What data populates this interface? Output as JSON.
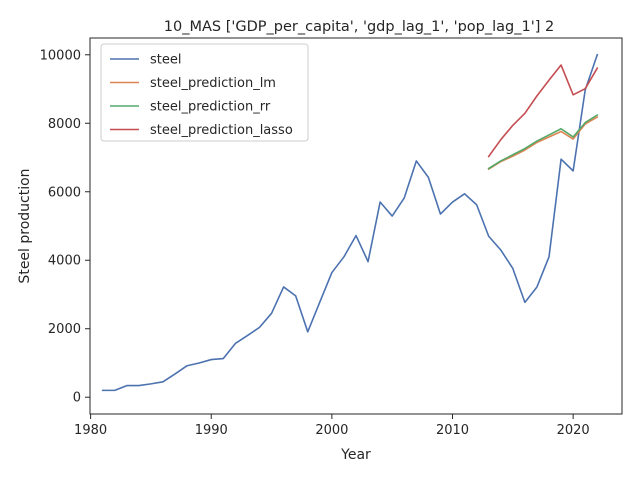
{
  "chart_data": {
    "type": "line",
    "title": "10_MAS ['GDP_per_capita', 'gdp_lag_1', 'pop_lag_1'] 2",
    "xlabel": "Year",
    "ylabel": "Steel production",
    "xlim": [
      1979.95,
      2024.05
    ],
    "ylim": [
      -490,
      10490
    ],
    "xticks": [
      1980,
      1990,
      2000,
      2010,
      2020
    ],
    "yticks": [
      0,
      2000,
      4000,
      6000,
      8000,
      10000
    ],
    "grid": false,
    "legend_position": "upper-left",
    "series": [
      {
        "name": "steel",
        "color": "#4c72b0",
        "x": [
          1981,
          1982,
          1983,
          1984,
          1985,
          1986,
          1987,
          1988,
          1989,
          1990,
          1991,
          1992,
          1993,
          1994,
          1995,
          1996,
          1997,
          1998,
          1999,
          2000,
          2001,
          2002,
          2003,
          2004,
          2005,
          2006,
          2007,
          2008,
          2009,
          2010,
          2011,
          2012,
          2013,
          2014,
          2015,
          2016,
          2017,
          2018,
          2019,
          2020,
          2021,
          2022
        ],
        "y": [
          200,
          200,
          340,
          340,
          390,
          450,
          680,
          920,
          1000,
          1100,
          1130,
          1570,
          1800,
          2040,
          2450,
          3220,
          2960,
          1910,
          2780,
          3640,
          4100,
          4720,
          3960,
          5700,
          5290,
          5820,
          6900,
          6420,
          5350,
          5700,
          5940,
          5620,
          4700,
          4300,
          3760,
          2770,
          3220,
          4100,
          6950,
          6610,
          8970,
          10000
        ]
      },
      {
        "name": "steel_prediction_lm",
        "color": "#dd8452",
        "x": [
          2013,
          2014,
          2015,
          2016,
          2017,
          2018,
          2019,
          2020,
          2021,
          2022
        ],
        "y": [
          6660,
          6880,
          7040,
          7220,
          7440,
          7600,
          7760,
          7540,
          7980,
          8180
        ]
      },
      {
        "name": "steel_prediction_rr",
        "color": "#55a868",
        "x": [
          2013,
          2014,
          2015,
          2016,
          2017,
          2018,
          2019,
          2020,
          2021,
          2022
        ],
        "y": [
          6680,
          6900,
          7080,
          7260,
          7480,
          7660,
          7840,
          7600,
          8020,
          8240
        ]
      },
      {
        "name": "steel_prediction_lasso",
        "color": "#c44e52",
        "x": [
          2013,
          2014,
          2015,
          2016,
          2017,
          2018,
          2019,
          2020,
          2021,
          2022
        ],
        "y": [
          7030,
          7520,
          7940,
          8290,
          8800,
          9260,
          9700,
          8830,
          9010,
          9610
        ]
      }
    ]
  }
}
